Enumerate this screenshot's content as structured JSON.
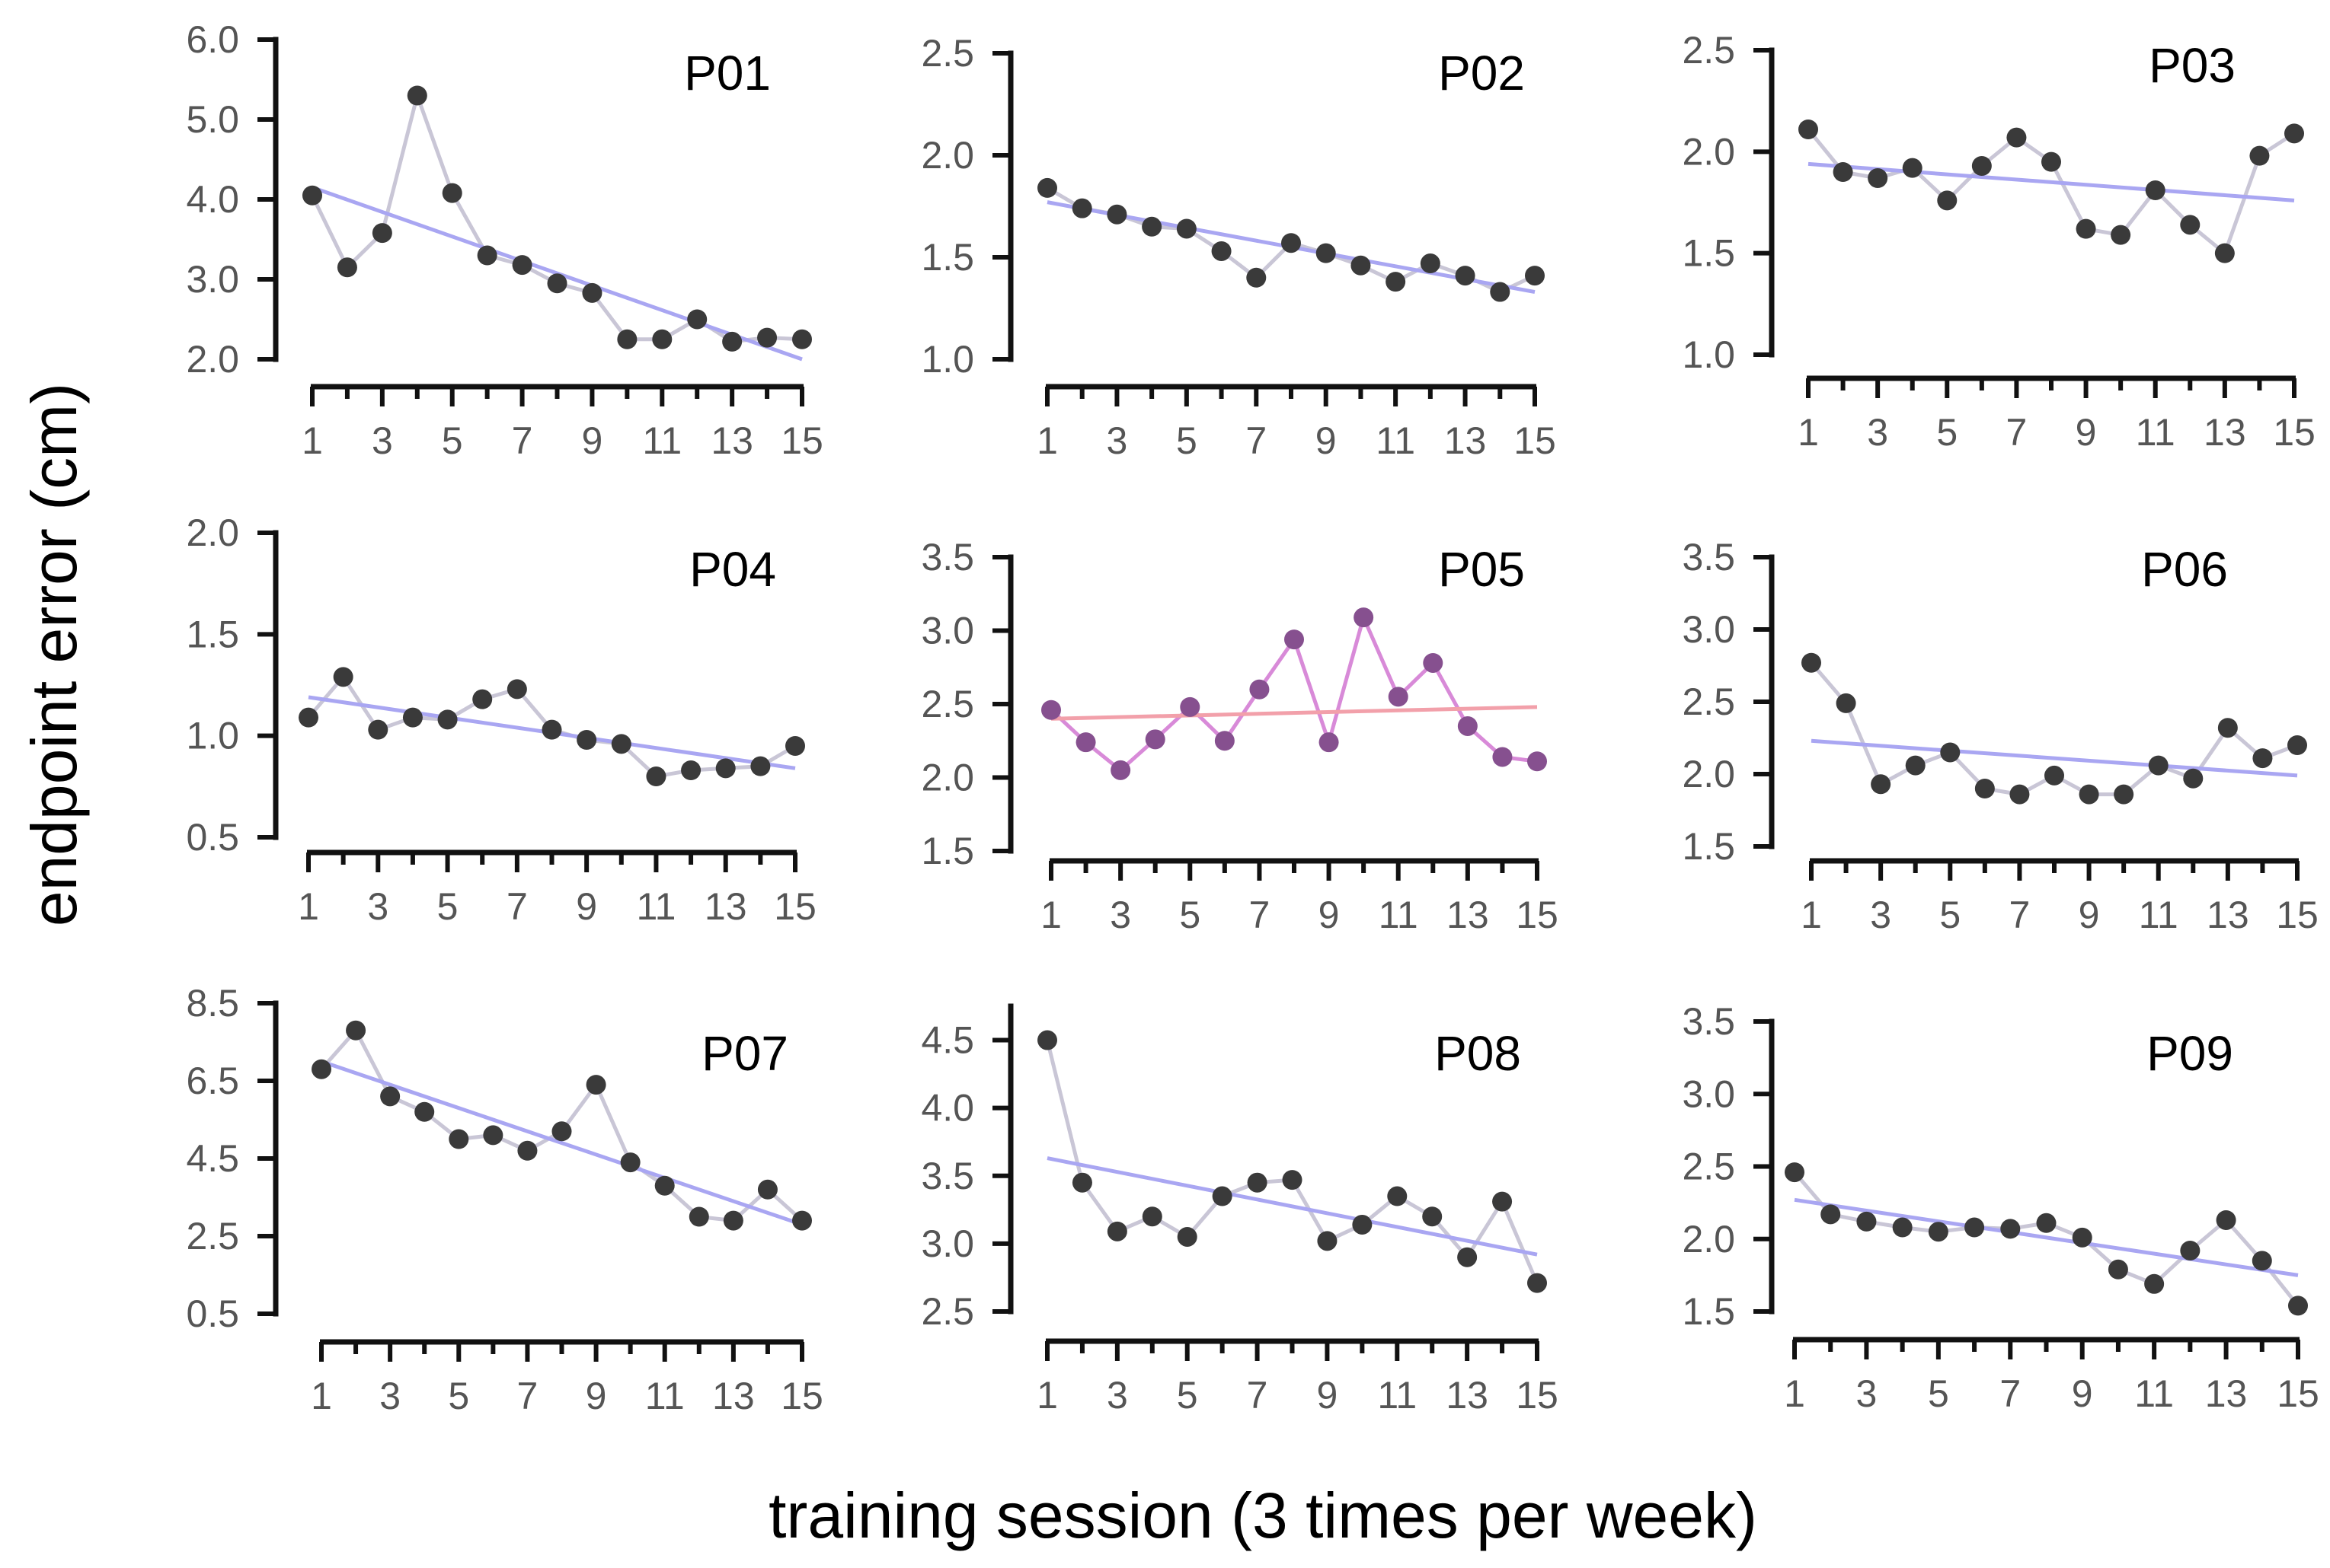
{
  "figure": {
    "ylabel": "endpoint error  (cm)",
    "xlabel": "training session  (3 times per week)"
  },
  "colors": {
    "point": "#3a3a3a",
    "connector": "#c9c6d6",
    "trend": "#a9a6f2",
    "p05_point": "#86508f",
    "p05_connector": "#d88ad8",
    "p05_trend": "#f2a0aa",
    "axis": "#111111"
  },
  "chart_data": [
    {
      "type": "line",
      "title": "P01",
      "xlabel": "training session  (3 times per week)",
      "ylabel": "endpoint error  (cm)",
      "x": [
        1,
        2,
        3,
        4,
        5,
        6,
        7,
        8,
        9,
        10,
        11,
        12,
        13,
        14,
        15
      ],
      "xticks": [
        1,
        3,
        5,
        7,
        9,
        11,
        13,
        15
      ],
      "xtick_labels": [
        "1",
        "3",
        "5",
        "7",
        "9",
        "11",
        "13",
        "15"
      ],
      "values": [
        4.05,
        3.15,
        3.58,
        5.3,
        4.08,
        3.3,
        3.18,
        2.95,
        2.83,
        2.25,
        2.25,
        2.5,
        2.22,
        2.27,
        2.25
      ],
      "trend": [
        4.15,
        2.0
      ],
      "ylim": [
        2.0,
        6.0
      ],
      "yticks": [
        2.0,
        3.0,
        4.0,
        5.0,
        6.0
      ],
      "ytick_labels": [
        "2.0",
        "3.0",
        "4.0",
        "5.0",
        "6.0"
      ],
      "style": "default"
    },
    {
      "type": "line",
      "title": "P02",
      "xlabel": "training session  (3 times per week)",
      "ylabel": "endpoint error  (cm)",
      "x": [
        1,
        2,
        3,
        4,
        5,
        6,
        7,
        8,
        9,
        10,
        11,
        12,
        13,
        14,
        15
      ],
      "xticks": [
        1,
        3,
        5,
        7,
        9,
        11,
        13,
        15
      ],
      "xtick_labels": [
        "1",
        "3",
        "5",
        "7",
        "9",
        "11",
        "13",
        "15"
      ],
      "values": [
        1.84,
        1.74,
        1.71,
        1.65,
        1.64,
        1.53,
        1.4,
        1.57,
        1.52,
        1.46,
        1.38,
        1.47,
        1.41,
        1.33,
        1.41
      ],
      "trend": [
        1.77,
        1.33
      ],
      "ylim": [
        1.0,
        2.5
      ],
      "yticks": [
        1.0,
        1.5,
        2.0,
        2.5
      ],
      "ytick_labels": [
        "1.0",
        "1.5",
        "2.0",
        "2.5"
      ],
      "style": "default"
    },
    {
      "type": "line",
      "title": "P03",
      "xlabel": "training session  (3 times per week)",
      "ylabel": "endpoint error  (cm)",
      "x": [
        1,
        2,
        3,
        4,
        5,
        6,
        7,
        8,
        9,
        10,
        11,
        12,
        13,
        14,
        15
      ],
      "xticks": [
        1,
        3,
        5,
        7,
        9,
        11,
        13,
        15
      ],
      "xtick_labels": [
        "1",
        "3",
        "5",
        "7",
        "9",
        "11",
        "13",
        "15"
      ],
      "values": [
        2.11,
        1.9,
        1.87,
        1.92,
        1.76,
        1.93,
        2.07,
        1.95,
        1.62,
        1.59,
        1.81,
        1.64,
        1.5,
        1.98,
        2.09
      ],
      "trend": [
        1.94,
        1.76
      ],
      "ylim": [
        1.0,
        2.5
      ],
      "yticks": [
        1.0,
        1.5,
        2.0,
        2.5
      ],
      "ytick_labels": [
        "1.0",
        "1.5",
        "2.0",
        "2.5"
      ],
      "style": "default"
    },
    {
      "type": "line",
      "title": "P04",
      "xlabel": "training session  (3 times per week)",
      "ylabel": "endpoint error  (cm)",
      "x": [
        1,
        2,
        3,
        4,
        5,
        6,
        7,
        8,
        9,
        10,
        11,
        12,
        13,
        14,
        15
      ],
      "xticks": [
        1,
        3,
        5,
        7,
        9,
        11,
        13,
        15
      ],
      "xtick_labels": [
        "1",
        "3",
        "5",
        "7",
        "9",
        "11",
        "13",
        "15"
      ],
      "values": [
        1.09,
        1.29,
        1.03,
        1.09,
        1.08,
        1.18,
        1.23,
        1.03,
        0.98,
        0.96,
        0.8,
        0.83,
        0.84,
        0.85,
        0.95
      ],
      "trend": [
        1.19,
        0.84
      ],
      "ylim": [
        0.5,
        2.0
      ],
      "yticks": [
        0.5,
        1.0,
        1.5,
        2.0
      ],
      "ytick_labels": [
        "0.5",
        "1.0",
        "1.5",
        "2.0"
      ],
      "style": "default"
    },
    {
      "type": "line",
      "title": "P05",
      "xlabel": "training session  (3 times per week)",
      "ylabel": "endpoint error  (cm)",
      "x": [
        1,
        2,
        3,
        4,
        5,
        6,
        7,
        8,
        9,
        10,
        11,
        12,
        13,
        14,
        15
      ],
      "xticks": [
        1,
        3,
        5,
        7,
        9,
        11,
        13,
        15
      ],
      "xtick_labels": [
        "1",
        "3",
        "5",
        "7",
        "9",
        "11",
        "13",
        "15"
      ],
      "values": [
        2.46,
        2.24,
        2.05,
        2.26,
        2.48,
        2.25,
        2.6,
        2.94,
        2.24,
        3.09,
        2.55,
        2.78,
        2.35,
        2.14,
        2.11
      ],
      "trend": [
        2.4,
        2.48
      ],
      "ylim": [
        1.5,
        3.5
      ],
      "yticks": [
        1.5,
        2.0,
        2.5,
        3.0,
        3.5
      ],
      "ytick_labels": [
        "1.5",
        "2.0",
        "2.5",
        "3.0",
        "3.5"
      ],
      "style": "highlight"
    },
    {
      "type": "line",
      "title": "P06",
      "xlabel": "training session  (3 times per week)",
      "ylabel": "endpoint error  (cm)",
      "x": [
        1,
        2,
        3,
        4,
        5,
        6,
        7,
        8,
        9,
        10,
        11,
        12,
        13,
        14,
        15
      ],
      "xticks": [
        1,
        3,
        5,
        7,
        9,
        11,
        13,
        15
      ],
      "xtick_labels": [
        "1",
        "3",
        "5",
        "7",
        "9",
        "11",
        "13",
        "15"
      ],
      "values": [
        2.77,
        2.49,
        1.93,
        2.06,
        2.15,
        1.9,
        1.86,
        1.99,
        1.86,
        1.86,
        2.06,
        1.97,
        2.32,
        2.11,
        2.2
      ],
      "trend": [
        2.23,
        1.99
      ],
      "ylim": [
        1.5,
        3.5
      ],
      "yticks": [
        1.5,
        2.0,
        2.5,
        3.0,
        3.5
      ],
      "ytick_labels": [
        "1.5",
        "2.0",
        "2.5",
        "3.0",
        "3.5"
      ],
      "style": "default"
    },
    {
      "type": "line",
      "title": "P07",
      "xlabel": "training session  (3 times per week)",
      "ylabel": "endpoint error  (cm)",
      "x": [
        1,
        2,
        3,
        4,
        5,
        6,
        7,
        8,
        9,
        10,
        11,
        12,
        13,
        14,
        15
      ],
      "xticks": [
        1,
        3,
        5,
        7,
        9,
        11,
        13,
        15
      ],
      "xtick_labels": [
        "1",
        "3",
        "5",
        "7",
        "9",
        "11",
        "13",
        "15"
      ],
      "values": [
        6.8,
        7.8,
        6.1,
        5.7,
        5.0,
        5.1,
        4.7,
        5.2,
        6.4,
        4.4,
        3.8,
        3.0,
        2.9,
        3.7,
        2.9
      ],
      "trend": [
        7.0,
        2.8
      ],
      "ylim": [
        0.5,
        8.5
      ],
      "yticks": [
        0.5,
        2.5,
        4.5,
        6.5,
        8.5
      ],
      "ytick_labels": [
        "0.5",
        "2.5",
        "4.5",
        "6.5",
        "8.5"
      ],
      "style": "default"
    },
    {
      "type": "line",
      "title": "P08",
      "xlabel": "training session  (3 times per week)",
      "ylabel": "endpoint error  (cm)",
      "x": [
        1,
        2,
        3,
        4,
        5,
        6,
        7,
        8,
        9,
        10,
        11,
        12,
        13,
        14,
        15
      ],
      "xticks": [
        1,
        3,
        5,
        7,
        9,
        11,
        13,
        15
      ],
      "xtick_labels": [
        "1",
        "3",
        "5",
        "7",
        "9",
        "11",
        "13",
        "15"
      ],
      "values": [
        4.5,
        3.45,
        3.09,
        3.2,
        3.05,
        3.35,
        3.45,
        3.47,
        3.02,
        3.14,
        3.35,
        3.2,
        2.9,
        3.31,
        2.71
      ],
      "trend": [
        3.63,
        2.92
      ],
      "ylim": [
        2.5,
        4.75
      ],
      "yticks": [
        2.5,
        3.0,
        3.5,
        4.0,
        4.5
      ],
      "ytick_labels": [
        "2.5",
        "3.0",
        "3.5",
        "4.0",
        "4.5"
      ],
      "style": "default"
    },
    {
      "type": "line",
      "title": "P09",
      "xlabel": "training session  (3 times per week)",
      "ylabel": "endpoint error  (cm)",
      "x": [
        1,
        2,
        3,
        4,
        5,
        6,
        7,
        8,
        9,
        10,
        11,
        12,
        13,
        14,
        15
      ],
      "xticks": [
        1,
        3,
        5,
        7,
        9,
        11,
        13,
        15
      ],
      "xtick_labels": [
        "1",
        "3",
        "5",
        "7",
        "9",
        "11",
        "13",
        "15"
      ],
      "values": [
        2.46,
        2.17,
        2.12,
        2.08,
        2.05,
        2.08,
        2.07,
        2.11,
        2.01,
        1.79,
        1.69,
        1.92,
        2.13,
        1.85,
        1.54
      ],
      "trend": [
        2.27,
        1.75
      ],
      "ylim": [
        1.5,
        3.5
      ],
      "yticks": [
        1.5,
        2.0,
        2.5,
        3.0,
        3.5
      ],
      "ytick_labels": [
        "1.5",
        "2.0",
        "2.5",
        "3.0",
        "3.5"
      ],
      "style": "default"
    }
  ]
}
